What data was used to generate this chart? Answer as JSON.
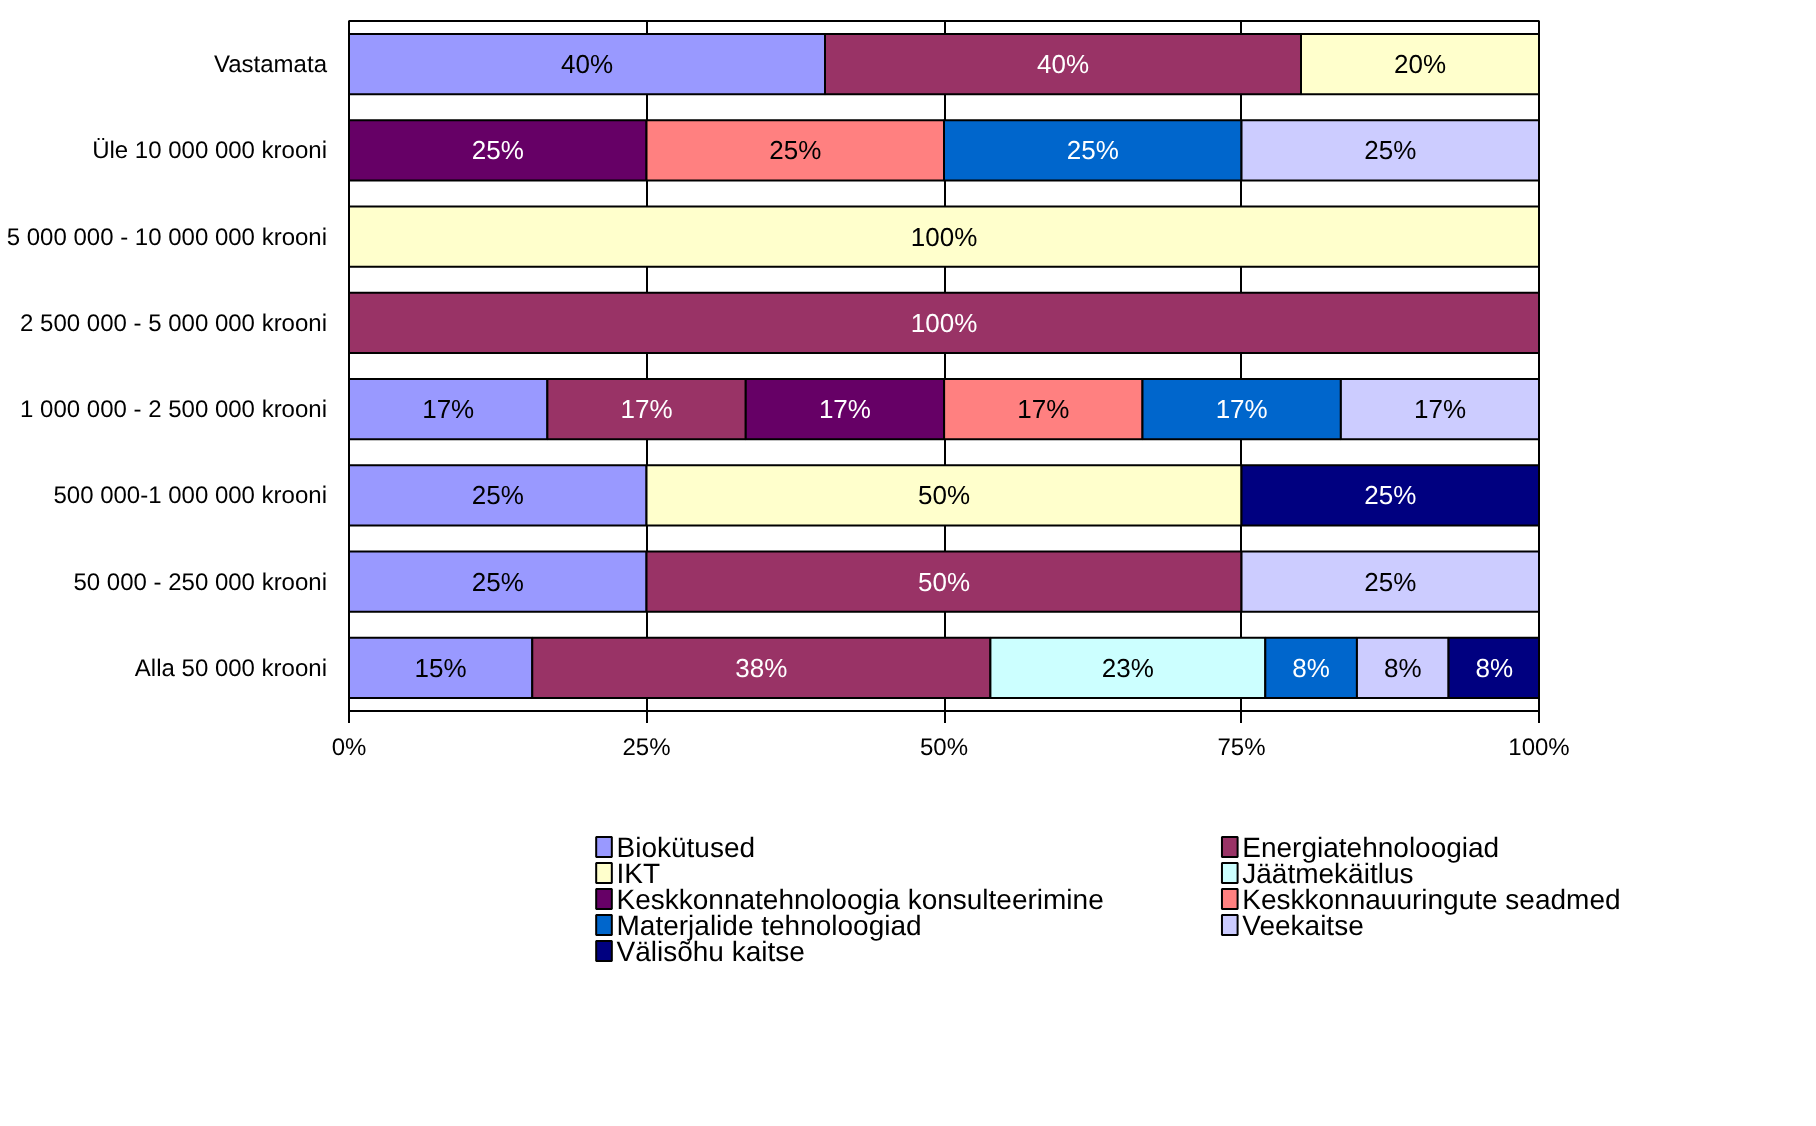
{
  "chart_data": {
    "type": "bar",
    "orientation": "horizontal",
    "stacked": true,
    "categories": [
      "Vastamata",
      "Üle 10 000 000 krooni",
      "5 000 000 - 10 000 000 krooni",
      "2 500 000 - 5 000 000 krooni",
      "1 000 000 - 2 500 000 krooni",
      "500 000-1 000 000 krooni",
      "50 000 - 250 000 krooni",
      "Alla 50 000 krooni"
    ],
    "series": [
      {
        "name": "Biokütused",
        "color": "#9999ff",
        "values": [
          40,
          null,
          null,
          null,
          16.67,
          25,
          25,
          15.4
        ],
        "value_labels": [
          "40%",
          null,
          null,
          null,
          "17%",
          "25%",
          "25%",
          "15%"
        ]
      },
      {
        "name": "Energiatehnoloogiad",
        "color": "#993366",
        "values": [
          40,
          null,
          null,
          100,
          16.67,
          null,
          50,
          38.5
        ],
        "value_labels": [
          "40%",
          null,
          null,
          "100%",
          "17%",
          null,
          "50%",
          "38%"
        ]
      },
      {
        "name": "IKT",
        "color": "#ffffcc",
        "values": [
          20,
          null,
          100,
          null,
          null,
          50,
          null,
          null
        ],
        "value_labels": [
          "20%",
          null,
          "100%",
          null,
          null,
          "50%",
          null,
          null
        ]
      },
      {
        "name": "Jäätmekäitlus",
        "color": "#ccffff",
        "values": [
          null,
          null,
          null,
          null,
          null,
          null,
          null,
          23.1
        ],
        "value_labels": [
          null,
          null,
          null,
          null,
          null,
          null,
          null,
          "23%"
        ]
      },
      {
        "name": "Keskkonnatehnoloogia konsulteerimine",
        "color": "#660066",
        "values": [
          null,
          25,
          null,
          null,
          16.67,
          null,
          null,
          null
        ],
        "value_labels": [
          null,
          "25%",
          null,
          null,
          "17%",
          null,
          null,
          null
        ]
      },
      {
        "name": "Keskkonnauuringute seadmed",
        "color": "#ff8080",
        "values": [
          null,
          25,
          null,
          null,
          16.67,
          null,
          null,
          null
        ],
        "value_labels": [
          null,
          "25%",
          null,
          null,
          "17%",
          null,
          null,
          null
        ]
      },
      {
        "name": "Materjalide tehnoloogiad",
        "color": "#0066cc",
        "values": [
          null,
          25,
          null,
          null,
          16.67,
          null,
          null,
          7.7
        ],
        "value_labels": [
          null,
          "25%",
          null,
          null,
          "17%",
          null,
          null,
          "8%"
        ]
      },
      {
        "name": "Veekaitse",
        "color": "#ccccff",
        "values": [
          null,
          25,
          null,
          null,
          16.67,
          null,
          25,
          7.7
        ],
        "value_labels": [
          null,
          "25%",
          null,
          null,
          "17%",
          null,
          "25%",
          "8%"
        ]
      },
      {
        "name": "Välisõhu kaitse",
        "color": "#000080",
        "values": [
          null,
          null,
          null,
          null,
          null,
          25,
          null,
          7.7
        ],
        "value_labels": [
          null,
          null,
          null,
          null,
          null,
          "25%",
          null,
          "8%"
        ]
      }
    ],
    "xlim": [
      0,
      100
    ],
    "xticks": [
      {
        "value": 0,
        "label": "0%"
      },
      {
        "value": 25,
        "label": "25%"
      },
      {
        "value": 50,
        "label": "50%"
      },
      {
        "value": 75,
        "label": "75%"
      },
      {
        "value": 100,
        "label": "100%"
      }
    ],
    "grid": "x",
    "legend": "bottom"
  }
}
